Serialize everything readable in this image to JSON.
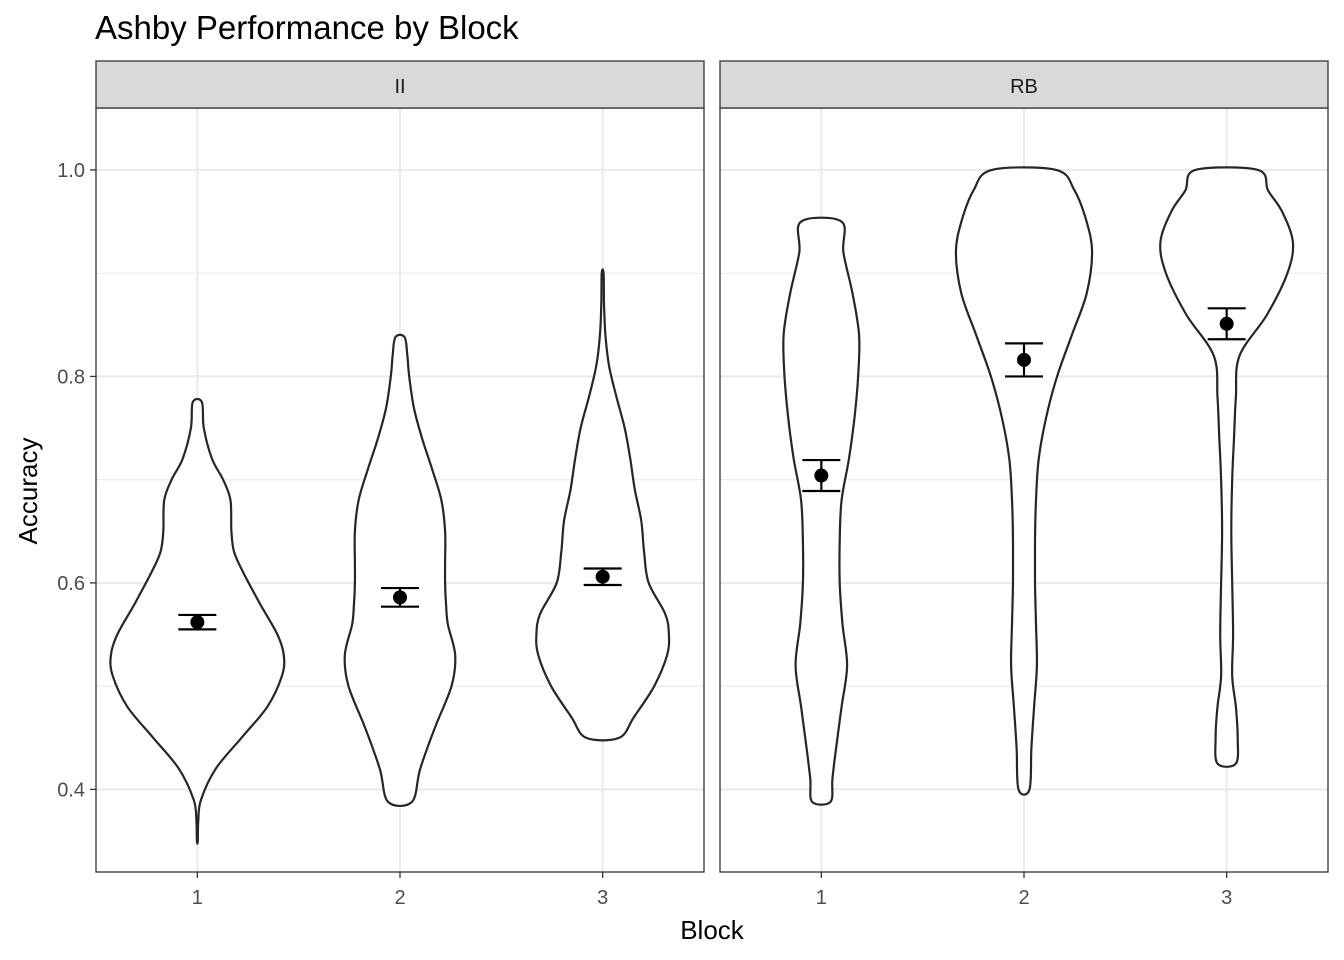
{
  "chart_data": {
    "type": "violin",
    "title": "Ashby Performance by Block",
    "xlabel": "Block",
    "ylabel": "Accuracy",
    "ylim": [
      0.32,
      1.06
    ],
    "yticks": [
      0.4,
      0.6,
      0.8,
      1.0
    ],
    "ytick_labels": [
      "0.4",
      "0.6",
      "0.8",
      "1.0"
    ],
    "categories": [
      "1",
      "2",
      "3"
    ],
    "grid": true,
    "facets": [
      {
        "label": "II",
        "blocks": [
          {
            "block": "1",
            "mean": 0.562,
            "se_low": 0.555,
            "se_high": 0.569,
            "min": 0.35,
            "max": 0.775,
            "profile": [
              [
                0.35,
                0.005
              ],
              [
                0.37,
                0.01
              ],
              [
                0.39,
                0.04
              ],
              [
                0.42,
                0.2
              ],
              [
                0.45,
                0.48
              ],
              [
                0.48,
                0.76
              ],
              [
                0.51,
                0.92
              ],
              [
                0.53,
                0.94
              ],
              [
                0.55,
                0.87
              ],
              [
                0.58,
                0.68
              ],
              [
                0.61,
                0.5
              ],
              [
                0.63,
                0.4
              ],
              [
                0.65,
                0.37
              ],
              [
                0.68,
                0.36
              ],
              [
                0.7,
                0.28
              ],
              [
                0.72,
                0.16
              ],
              [
                0.75,
                0.07
              ],
              [
                0.775,
                0.05
              ]
            ]
          },
          {
            "block": "2",
            "mean": 0.586,
            "se_low": 0.577,
            "se_high": 0.595,
            "min": 0.388,
            "max": 0.838,
            "profile": [
              [
                0.388,
                0.13
              ],
              [
                0.42,
                0.22
              ],
              [
                0.46,
                0.38
              ],
              [
                0.5,
                0.56
              ],
              [
                0.53,
                0.6
              ],
              [
                0.56,
                0.52
              ],
              [
                0.58,
                0.5
              ],
              [
                0.6,
                0.49
              ],
              [
                0.62,
                0.49
              ],
              [
                0.65,
                0.49
              ],
              [
                0.68,
                0.45
              ],
              [
                0.71,
                0.35
              ],
              [
                0.74,
                0.24
              ],
              [
                0.77,
                0.15
              ],
              [
                0.8,
                0.1
              ],
              [
                0.82,
                0.08
              ],
              [
                0.838,
                0.05
              ]
            ]
          },
          {
            "block": "3",
            "mean": 0.606,
            "se_low": 0.598,
            "se_high": 0.614,
            "min": 0.45,
            "max": 0.9,
            "profile": [
              [
                0.45,
                0.18
              ],
              [
                0.47,
                0.34
              ],
              [
                0.5,
                0.56
              ],
              [
                0.53,
                0.7
              ],
              [
                0.55,
                0.72
              ],
              [
                0.57,
                0.68
              ],
              [
                0.6,
                0.5
              ],
              [
                0.63,
                0.45
              ],
              [
                0.66,
                0.42
              ],
              [
                0.69,
                0.35
              ],
              [
                0.72,
                0.3
              ],
              [
                0.75,
                0.24
              ],
              [
                0.78,
                0.15
              ],
              [
                0.81,
                0.07
              ],
              [
                0.84,
                0.03
              ],
              [
                0.87,
                0.015
              ],
              [
                0.9,
                0.01
              ]
            ]
          }
        ]
      },
      {
        "label": "RB",
        "blocks": [
          {
            "block": "1",
            "mean": 0.704,
            "se_low": 0.689,
            "se_high": 0.719,
            "min": 0.388,
            "max": 0.95,
            "profile": [
              [
                0.388,
                0.1
              ],
              [
                0.41,
                0.12
              ],
              [
                0.44,
                0.16
              ],
              [
                0.48,
                0.22
              ],
              [
                0.52,
                0.28
              ],
              [
                0.56,
                0.23
              ],
              [
                0.6,
                0.2
              ],
              [
                0.64,
                0.2
              ],
              [
                0.68,
                0.22
              ],
              [
                0.72,
                0.3
              ],
              [
                0.76,
                0.36
              ],
              [
                0.8,
                0.4
              ],
              [
                0.84,
                0.41
              ],
              [
                0.88,
                0.34
              ],
              [
                0.92,
                0.24
              ],
              [
                0.95,
                0.22
              ]
            ]
          },
          {
            "block": "2",
            "mean": 0.816,
            "se_low": 0.8,
            "se_high": 0.832,
            "min": 0.4,
            "max": 1.0,
            "profile": [
              [
                0.4,
                0.06
              ],
              [
                0.44,
                0.08
              ],
              [
                0.48,
                0.11
              ],
              [
                0.52,
                0.14
              ],
              [
                0.56,
                0.13
              ],
              [
                0.6,
                0.12
              ],
              [
                0.64,
                0.12
              ],
              [
                0.68,
                0.13
              ],
              [
                0.72,
                0.16
              ],
              [
                0.76,
                0.24
              ],
              [
                0.8,
                0.36
              ],
              [
                0.84,
                0.52
              ],
              [
                0.88,
                0.68
              ],
              [
                0.92,
                0.74
              ],
              [
                0.95,
                0.68
              ],
              [
                0.98,
                0.55
              ],
              [
                1.0,
                0.35
              ]
            ]
          },
          {
            "block": "3",
            "mean": 0.851,
            "se_low": 0.836,
            "se_high": 0.866,
            "min": 0.425,
            "max": 1.0,
            "profile": [
              [
                0.425,
                0.1
              ],
              [
                0.45,
                0.12
              ],
              [
                0.48,
                0.1
              ],
              [
                0.51,
                0.06
              ],
              [
                0.55,
                0.07
              ],
              [
                0.6,
                0.06
              ],
              [
                0.65,
                0.05
              ],
              [
                0.7,
                0.06
              ],
              [
                0.74,
                0.08
              ],
              [
                0.78,
                0.1
              ],
              [
                0.82,
                0.14
              ],
              [
                0.86,
                0.44
              ],
              [
                0.9,
                0.66
              ],
              [
                0.93,
                0.72
              ],
              [
                0.96,
                0.6
              ],
              [
                0.98,
                0.45
              ],
              [
                1.0,
                0.34
              ]
            ]
          }
        ]
      }
    ]
  }
}
